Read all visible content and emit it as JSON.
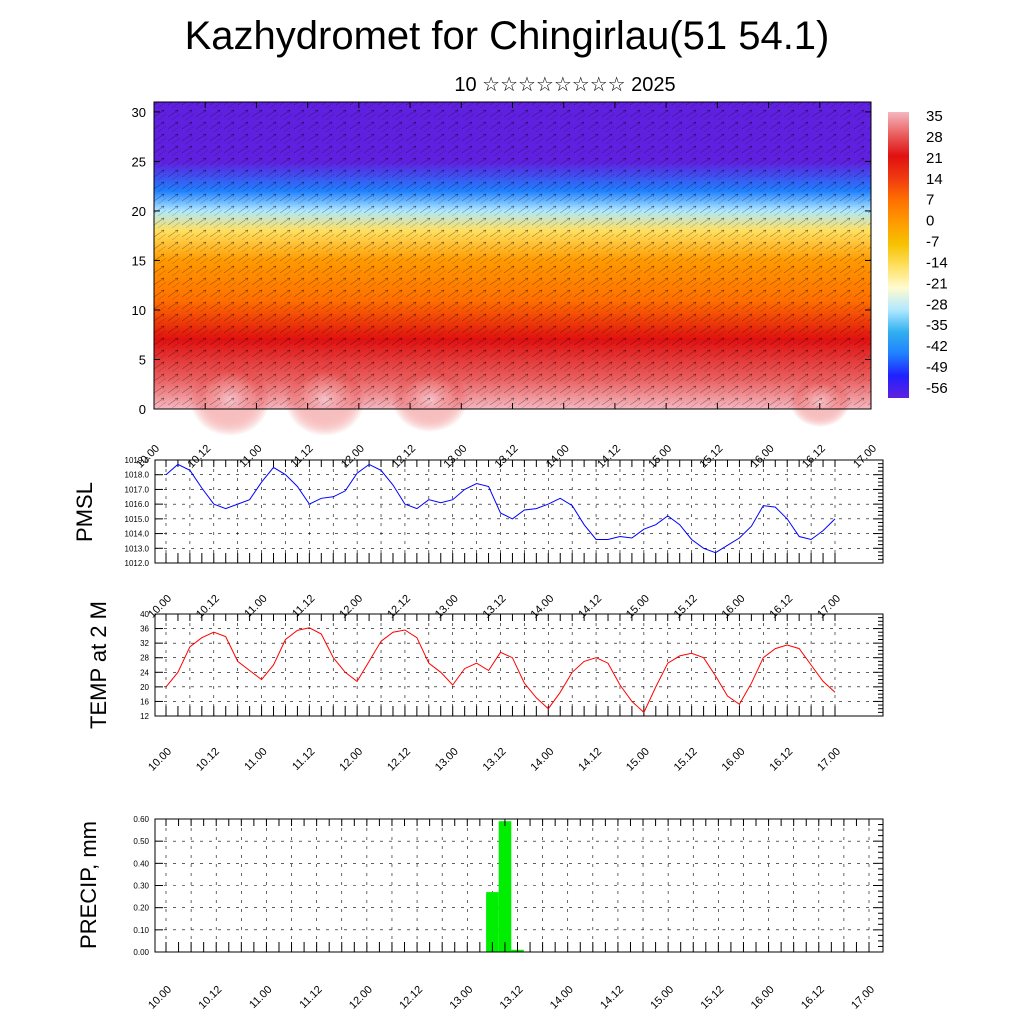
{
  "title": "Kazhydromet for Chingirlau(51 54.1)",
  "subtitle": "10 ☆☆☆☆☆☆☆☆ 2025",
  "colors": {
    "pmsl_line": "#0000ff",
    "temp_line": "#ff0000",
    "precip_bar": "#00ee00"
  },
  "chart_data": [
    {
      "type": "heatmap",
      "x_ticks": [
        "10.00",
        "10.12",
        "11.00",
        "11.12",
        "12.00",
        "12.12",
        "13.00",
        "13.12",
        "14.00",
        "14.12",
        "15.00",
        "15.12",
        "16.00",
        "16.12",
        "17.00"
      ],
      "y_ticks": [
        0,
        5,
        10,
        15,
        20,
        25,
        30
      ],
      "ylim": [
        0,
        31
      ],
      "colorbar_labels": [
        "35",
        "28",
        "21",
        "14",
        "7",
        "0",
        "-7",
        "-14",
        "-21",
        "-28",
        "-35",
        "-42",
        "-49",
        "-56"
      ],
      "colormap": [
        "#f4b8c0",
        "#ea6060",
        "#e01010",
        "#ef3a10",
        "#ff7000",
        "#ff9a00",
        "#f6c200",
        "#ffe060",
        "#fffbd0",
        "#b0e8ff",
        "#30b0f0",
        "#2080ff",
        "#2020ff",
        "#6020e0"
      ],
      "profile": [
        {
          "alt": 0,
          "value": 32
        },
        {
          "alt": 3,
          "value": 28
        },
        {
          "alt": 7,
          "value": 21
        },
        {
          "alt": 11,
          "value": 10
        },
        {
          "alt": 15,
          "value": -2
        },
        {
          "alt": 18,
          "value": -12
        },
        {
          "alt": 20,
          "value": -25
        },
        {
          "alt": 22,
          "value": -40
        },
        {
          "alt": 25,
          "value": -55
        },
        {
          "alt": 31,
          "value": -58
        }
      ]
    },
    {
      "type": "line",
      "ylabel": "PMSL",
      "x_ticks": [
        "10.00",
        "10.12",
        "11.00",
        "11.12",
        "12.00",
        "12.12",
        "13.00",
        "13.12",
        "14.00",
        "14.12",
        "15.00",
        "15.12",
        "16.00",
        "16.12",
        "17.00"
      ],
      "y_ticks": [
        "1012.0",
        "1013.0",
        "1014.0",
        "1015.0",
        "1016.0",
        "1017.0",
        "1018.0",
        "1019.0"
      ],
      "ylim": [
        1012,
        1019
      ],
      "x": [
        0,
        3,
        6,
        9,
        12,
        15,
        18,
        21,
        24,
        27,
        30,
        33,
        36,
        39,
        42,
        45,
        48,
        51,
        54,
        57,
        60,
        63,
        66,
        69,
        72,
        75,
        78,
        81,
        84,
        87,
        90,
        93,
        96,
        99,
        102,
        105,
        108,
        111,
        114,
        117,
        120,
        123,
        126,
        129,
        132,
        135,
        138,
        141,
        144,
        147,
        150,
        153,
        156,
        159,
        162,
        165,
        168
      ],
      "values": [
        1018.0,
        1018.7,
        1018.3,
        1017.1,
        1016.0,
        1015.7,
        1016.0,
        1016.3,
        1017.5,
        1018.5,
        1018.0,
        1017.2,
        1016.0,
        1016.4,
        1016.5,
        1016.9,
        1018.1,
        1018.7,
        1018.3,
        1017.3,
        1016.0,
        1015.7,
        1016.3,
        1016.1,
        1016.3,
        1017.0,
        1017.4,
        1017.2,
        1015.4,
        1015.0,
        1015.6,
        1015.7,
        1016.0,
        1016.4,
        1015.9,
        1014.6,
        1013.6,
        1013.6,
        1013.8,
        1013.7,
        1014.3,
        1014.6,
        1015.2,
        1014.6,
        1013.6,
        1013.0,
        1012.7,
        1013.2,
        1013.7,
        1014.5,
        1015.9,
        1015.8,
        1015.0,
        1013.8,
        1013.6,
        1014.2,
        1015.0
      ]
    },
    {
      "type": "line",
      "ylabel": "TEMP at 2 M",
      "x_ticks": [
        "10.00",
        "10.12",
        "11.00",
        "11.12",
        "12.00",
        "12.12",
        "13.00",
        "13.12",
        "14.00",
        "14.12",
        "15.00",
        "15.12",
        "16.00",
        "16.12",
        "17.00"
      ],
      "y_ticks": [
        "12",
        "16",
        "20",
        "24",
        "28",
        "32",
        "36",
        "40"
      ],
      "ylim": [
        12,
        40
      ],
      "x": [
        0,
        3,
        6,
        9,
        12,
        15,
        18,
        21,
        24,
        27,
        30,
        33,
        36,
        39,
        42,
        45,
        48,
        51,
        54,
        57,
        60,
        63,
        66,
        69,
        72,
        75,
        78,
        81,
        84,
        87,
        90,
        93,
        96,
        99,
        102,
        105,
        108,
        111,
        114,
        117,
        120,
        123,
        126,
        129,
        132,
        135,
        138,
        141,
        144,
        147,
        150,
        153,
        156,
        159,
        162,
        165,
        168
      ],
      "values": [
        20,
        24,
        31,
        33.5,
        35,
        33.8,
        27,
        24.5,
        22,
        26,
        33,
        35.5,
        36.2,
        34.5,
        28,
        24,
        21.5,
        27,
        32.5,
        35,
        35.6,
        33.5,
        26.5,
        24,
        20.5,
        25,
        26.5,
        24.5,
        29.5,
        28,
        21,
        17,
        14,
        18.5,
        24,
        27,
        28,
        26.5,
        20.5,
        16,
        13,
        20,
        26.5,
        28.5,
        29.2,
        28,
        23,
        17.5,
        15.2,
        21,
        28,
        30.5,
        31.5,
        30.5,
        26,
        21.5,
        18.5
      ]
    },
    {
      "type": "bar",
      "ylabel": "PRECIP, mm",
      "x_ticks": [
        "10.00",
        "10.12",
        "11.00",
        "11.12",
        "12.00",
        "12.12",
        "13.00",
        "13.12",
        "14.00",
        "14.12",
        "15.00",
        "15.12",
        "16.00",
        "16.12",
        "17.00"
      ],
      "y_ticks": [
        "0.00",
        "0.10",
        "0.20",
        "0.30",
        "0.40",
        "0.50",
        "0.60"
      ],
      "ylim": [
        0,
        0.6
      ],
      "bars": [
        {
          "x": 78,
          "value": 0.27
        },
        {
          "x": 81,
          "value": 0.59
        },
        {
          "x": 84,
          "value": 0.01
        }
      ]
    }
  ]
}
